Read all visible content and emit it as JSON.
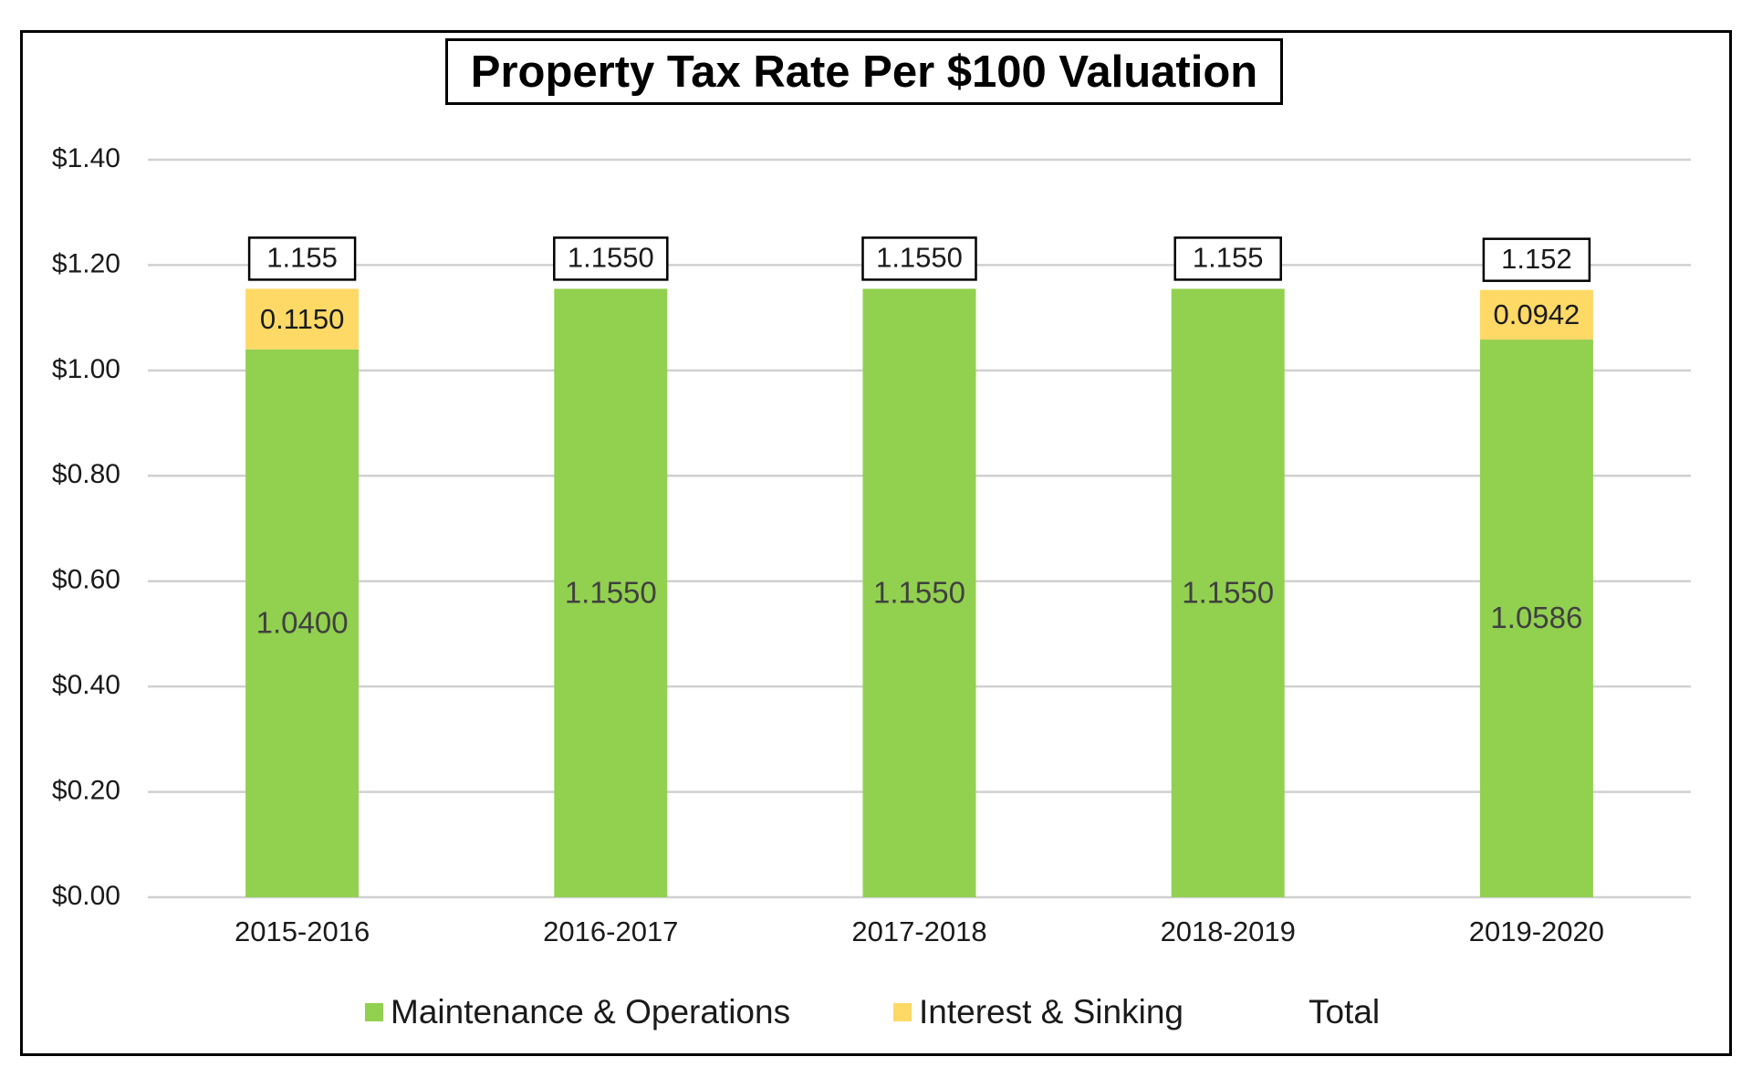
{
  "chart_data": {
    "type": "bar",
    "stacked": true,
    "title": "Property Tax Rate Per $100 Valuation",
    "categories": [
      "2015-2016",
      "2016-2017",
      "2017-2018",
      "2018-2019",
      "2019-2020"
    ],
    "series": [
      {
        "name": "Maintenance & Operations",
        "color": "#92d050",
        "values": [
          1.04,
          1.155,
          1.155,
          1.155,
          1.0586
        ],
        "labels": [
          "1.0400",
          "1.1550",
          "1.1550",
          "1.1550",
          "1.0586"
        ]
      },
      {
        "name": "Interest & Sinking",
        "color": "#ffd966",
        "values": [
          0.115,
          0,
          0,
          0,
          0.0942
        ],
        "labels": [
          "0.1150",
          "",
          "",
          "",
          "0.0942"
        ]
      }
    ],
    "totals": {
      "name": "Total",
      "labels": [
        "1.155",
        "1.1550",
        "1.1550",
        "1.155",
        "1.152"
      ]
    },
    "yticks": [
      "$0.00",
      "$0.20",
      "$0.40",
      "$0.60",
      "$0.80",
      "$1.00",
      "$1.20",
      "$1.40"
    ],
    "ylim": [
      0,
      1.4
    ],
    "ystep": 0.2,
    "grid": true,
    "legend_position": "bottom",
    "xlabel": "",
    "ylabel": ""
  }
}
